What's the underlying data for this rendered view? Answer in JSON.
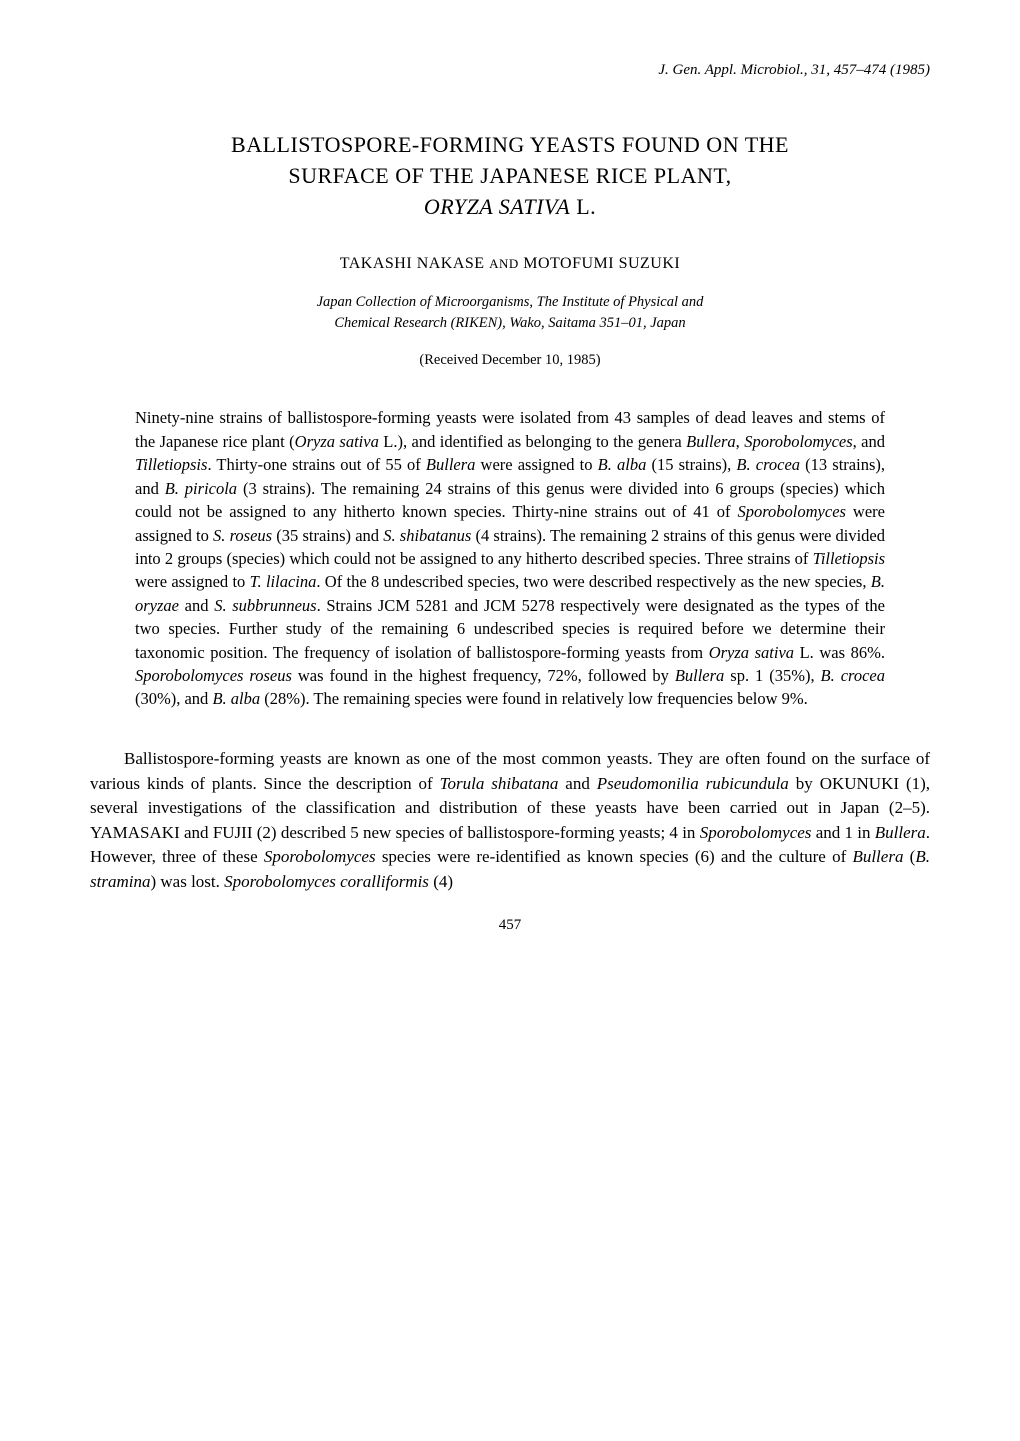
{
  "journal_ref": "J. Gen. Appl. Microbiol., 31, 457–474 (1985)",
  "title_line1": "BALLISTOSPORE-FORMING YEASTS FOUND ON THE",
  "title_line2": "SURFACE OF THE JAPANESE RICE PLANT,",
  "title_species": "ORYZA SATIVA",
  "title_after_species": " L.",
  "authors_html": "TAKASHI NAKASE and MOTOFUMI SUZUKI",
  "affiliation_line1": "Japan Collection of Microorganisms, The Institute of Physical and",
  "affiliation_line2": "Chemical Research (RIKEN), Wako, Saitama 351–01, Japan",
  "received": "(Received December 10, 1985)",
  "abstract": "Ninety-nine strains of ballistospore-forming yeasts were isolated from 43 samples of dead leaves and stems of the Japanese rice plant (Oryza sativa L.), and identified as belonging to the genera Bullera, Sporobolomyces, and Tilletiopsis. Thirty-one strains out of 55 of Bullera were assigned to B. alba (15 strains), B. crocea (13 strains), and B. piricola (3 strains). The remaining 24 strains of this genus were divided into 6 groups (species) which could not be assigned to any hitherto known species. Thirty-nine strains out of 41 of Sporobolomyces were assigned to S. roseus (35 strains) and S. shibatanus (4 strains). The remaining 2 strains of this genus were divided into 2 groups (species) which could not be assigned to any hitherto described species. Three strains of Tilletiopsis were assigned to T. lilacina. Of the 8 undescribed species, two were described respectively as the new species, B. oryzae and S. subbrunneus. Strains JCM 5281 and JCM 5278 respectively were designated as the types of the two species. Further study of the remaining 6 undescribed species is required before we determine their taxonomic position. The frequency of isolation of ballistospore-forming yeasts from Oryza sativa L. was 86%. Sporobolomyces roseus was found in the highest frequency, 72%, followed by Bullera sp. 1 (35%), B. crocea (30%), and B. alba (28%). The remaining species were found in relatively low frequencies below 9%.",
  "body_p1": "Ballistospore-forming yeasts are known as one of the most common yeasts. They are often found on the surface of various kinds of plants. Since the description of Torula shibatana and Pseudomonilia rubicundula by OKUNUKI (1), several investigations of the classification and distribution of these yeasts have been carried out in Japan (2–5). YAMASAKI and FUJII (2) described 5 new species of ballistospore-forming yeasts; 4 in Sporobolomyces and 1 in Bullera. However, three of these Sporobolomyces species were re-identified as known species (6) and the culture of Bullera (B. stramina) was lost. Sporobolomyces coralliformis (4)",
  "page_number": "457"
}
